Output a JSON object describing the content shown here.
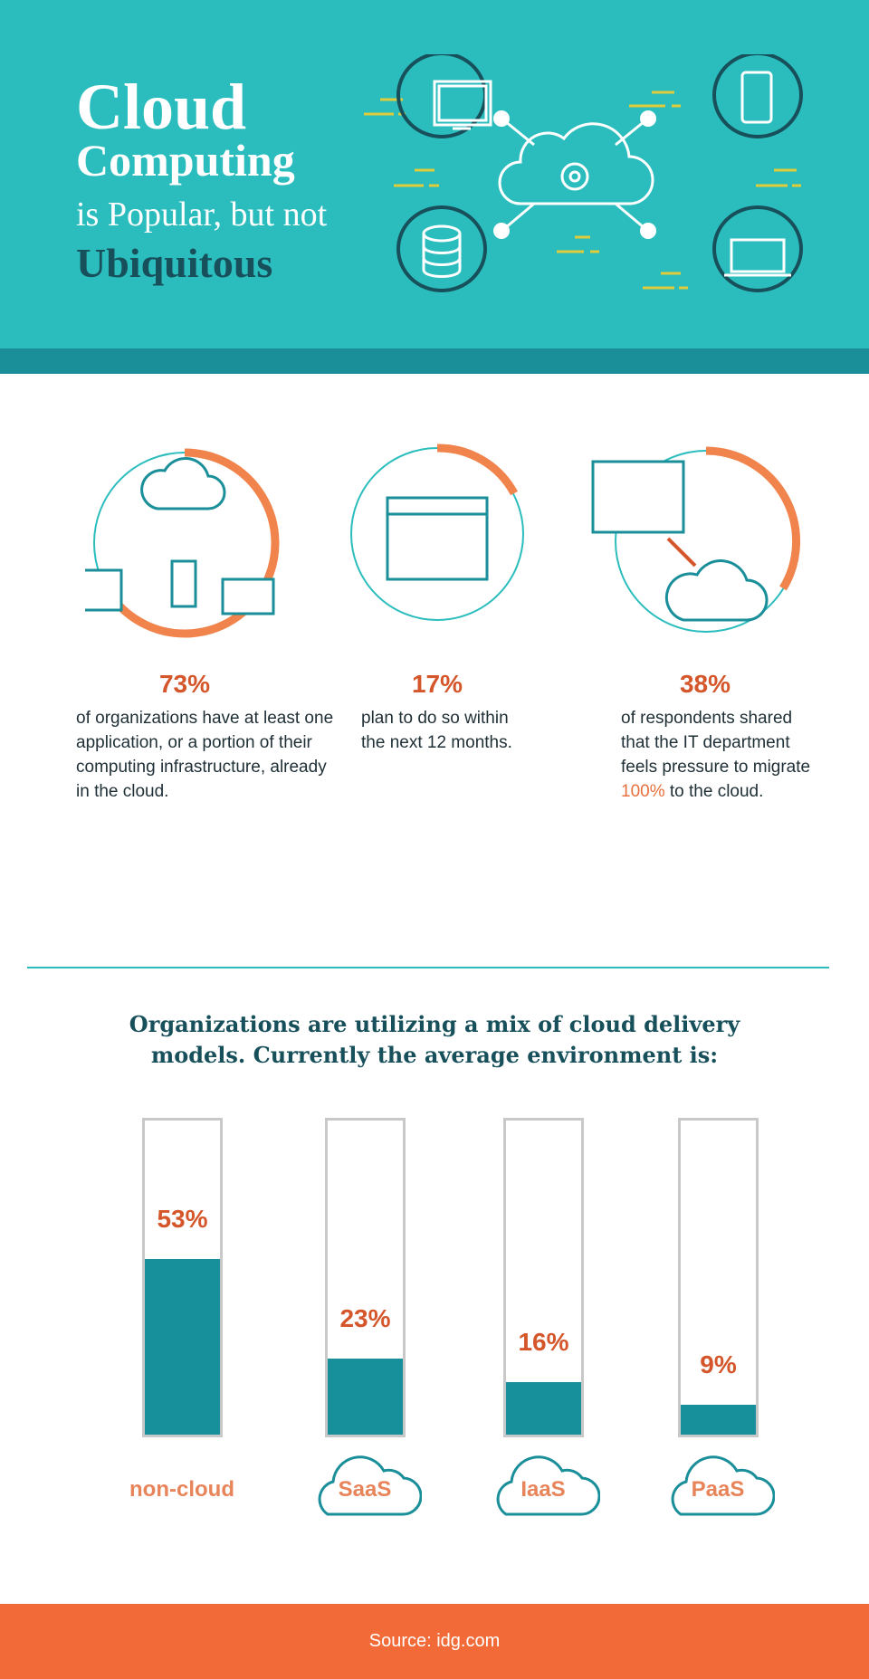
{
  "header": {
    "line1": "Cloud",
    "line2": "Computing",
    "line3": "is Popular, but not",
    "line4": "Ubiquitous"
  },
  "stats": [
    {
      "value": "73%",
      "text": "of organizations have at least one application, or a portion of their computing infrastructure, already in the cloud.",
      "icon": "cloud-devices-icon",
      "ring_fraction": 0.73
    },
    {
      "value": "17%",
      "text": "plan to do so within the next 12 months.",
      "icon": "calendar-icon",
      "ring_fraction": 0.17
    },
    {
      "value": "38%",
      "text_before": "of respondents shared that the IT department feels pressure to migrate ",
      "highlight": "100%",
      "text_after": " to the cloud.",
      "icon": "migrate-to-cloud-icon",
      "ring_fraction": 0.38
    }
  ],
  "chart_data": {
    "type": "bar",
    "title": "Organizations are utilizing a mix of cloud delivery models. Currently the average environment is:",
    "categories": [
      "non-cloud",
      "SaaS",
      "IaaS",
      "PaaS"
    ],
    "values": [
      53,
      23,
      16,
      9
    ],
    "value_labels": [
      "53%",
      "23%",
      "16%",
      "9%"
    ],
    "ylim": [
      0,
      100
    ],
    "grid": false,
    "colors": {
      "fill": "#17909c",
      "label": "#d4562a",
      "category": "#e8845a"
    }
  },
  "footer": {
    "source": "Source: idg.com"
  },
  "colors": {
    "header": "#2bbdbd",
    "strip": "#1a8f9a",
    "accent": "#f26a37",
    "dark": "#17505a"
  }
}
